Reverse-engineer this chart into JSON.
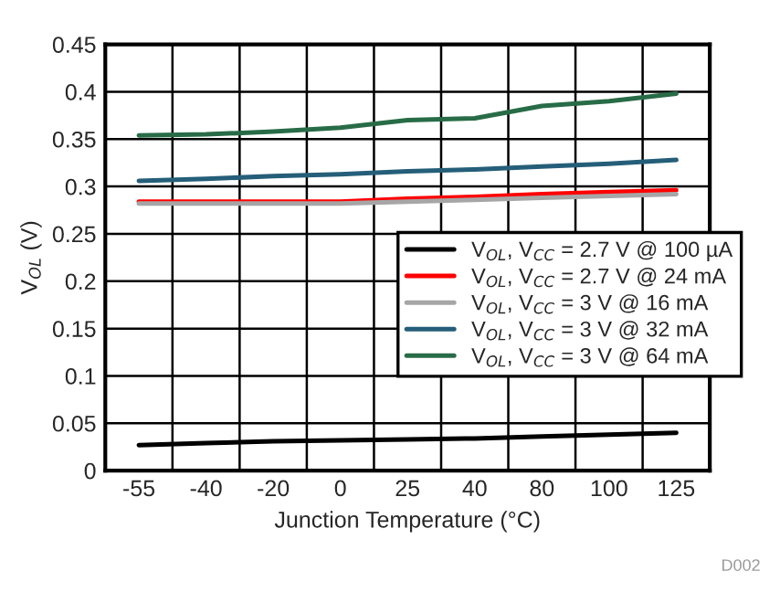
{
  "chart_data": {
    "type": "line",
    "xlabel": "Junction Temperature (°C)",
    "ylabel": "V$_{OL}$ (V)",
    "categories": [
      "-55",
      "-40",
      "-20",
      "0",
      "25",
      "40",
      "80",
      "100",
      "125"
    ],
    "series": [
      {
        "name": "V$_{OL}$, V$_{CC}$ = 2.7 V @ 100 µA",
        "color": "#000000",
        "values": [
          0.027,
          0.029,
          0.031,
          0.032,
          0.033,
          0.034,
          0.036,
          0.038,
          0.04
        ]
      },
      {
        "name": "V$_{OL}$, V$_{CC}$ = 2.7 V @ 24 mA",
        "color": "#ff0000",
        "values": [
          0.284,
          0.284,
          0.284,
          0.284,
          0.287,
          0.289,
          0.292,
          0.294,
          0.296
        ]
      },
      {
        "name": "V$_{OL}$, V$_{CC}$ = 3 V @ 16 mA",
        "color": "#a6a6a6",
        "values": [
          0.282,
          0.282,
          0.282,
          0.282,
          0.284,
          0.286,
          0.288,
          0.29,
          0.292
        ]
      },
      {
        "name": "V$_{OL}$, V$_{CC}$ = 3 V @ 32 mA",
        "color": "#255e79",
        "values": [
          0.306,
          0.308,
          0.311,
          0.313,
          0.316,
          0.318,
          0.321,
          0.324,
          0.328
        ]
      },
      {
        "name": "V$_{OL}$, V$_{CC}$ = 3 V @ 64 mA",
        "color": "#286c47",
        "values": [
          0.354,
          0.355,
          0.358,
          0.362,
          0.37,
          0.372,
          0.385,
          0.39,
          0.398
        ]
      }
    ],
    "ylim": [
      0,
      0.45
    ],
    "yticks": [
      0,
      0.05,
      0.1,
      0.15,
      0.2,
      0.25,
      0.3,
      0.35,
      0.4,
      0.45
    ],
    "grid": true,
    "legend": "right",
    "marker": "none",
    "line_style": "solid",
    "annotations": [
      "D002"
    ]
  }
}
